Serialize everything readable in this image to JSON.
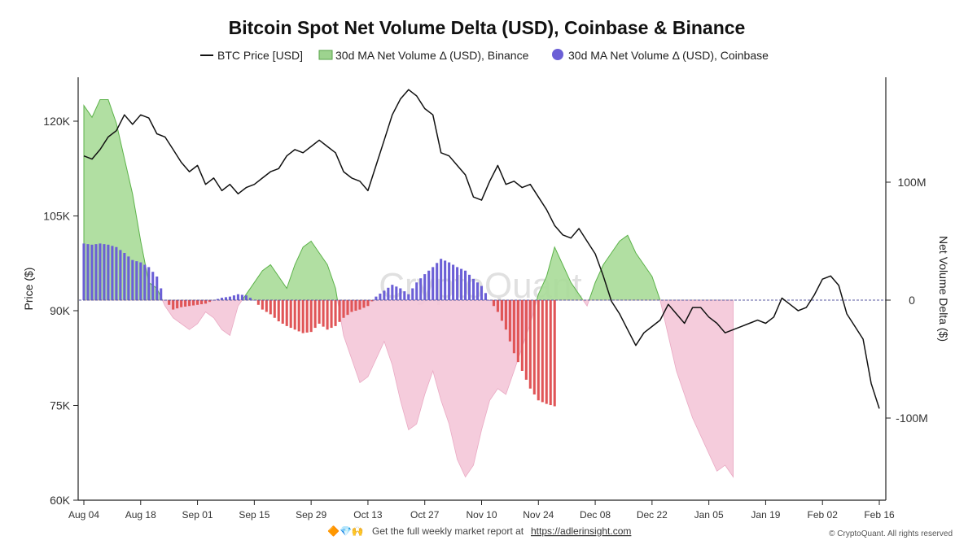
{
  "chart_data": {
    "type": "line",
    "title": "Bitcoin Spot Net Volume Delta (USD), Coinbase & Binance",
    "legend": [
      {
        "label": "BTC Price [USD]",
        "symbol": "line",
        "color": "#111111"
      },
      {
        "label": "30d MA Net Volume Δ (USD), Binance",
        "symbol": "area",
        "color": "#7cc46a"
      },
      {
        "label": "30d MA Net Volume Δ (USD), Coinbase",
        "symbol": "circle",
        "color": "#6b5fd6"
      }
    ],
    "y_left": {
      "label": "Price ($)",
      "ticks": [
        {
          "v": 60000,
          "t": "60K"
        },
        {
          "v": 75000,
          "t": "75K"
        },
        {
          "v": 90000,
          "t": "90K"
        },
        {
          "v": 105000,
          "t": "105K"
        },
        {
          "v": 120000,
          "t": "120K"
        }
      ],
      "range": [
        60000,
        130000
      ]
    },
    "y_right": {
      "label": "Net Volume Delta ($)",
      "ticks": [
        {
          "v": 100000000,
          "t": "100M"
        },
        {
          "v": 0,
          "t": "0"
        },
        {
          "v": -100000000,
          "t": "-100M"
        }
      ],
      "range": [
        -170000000,
        190000000
      ]
    },
    "x_ticks": [
      "Aug 04",
      "Aug 18",
      "Sep 01",
      "Sep 15",
      "Sep 29",
      "Oct 13",
      "Oct 27",
      "Nov 10",
      "Nov 24",
      "Dec 08",
      "Dec 22",
      "Jan 05",
      "Jan 19",
      "Feb 02",
      "Feb 16"
    ],
    "x_range_days": [
      0,
      196
    ],
    "series": [
      {
        "name": "BTC Price [USD]",
        "color": "#111111",
        "points": [
          [
            0,
            114500
          ],
          [
            2,
            114000
          ],
          [
            4,
            115500
          ],
          [
            6,
            117500
          ],
          [
            8,
            118500
          ],
          [
            10,
            121000
          ],
          [
            12,
            119500
          ],
          [
            14,
            121000
          ],
          [
            16,
            120500
          ],
          [
            18,
            118000
          ],
          [
            20,
            117500
          ],
          [
            22,
            115500
          ],
          [
            24,
            113500
          ],
          [
            26,
            112000
          ],
          [
            28,
            113000
          ],
          [
            30,
            110000
          ],
          [
            32,
            111000
          ],
          [
            34,
            109000
          ],
          [
            36,
            110000
          ],
          [
            38,
            108500
          ],
          [
            40,
            109500
          ],
          [
            42,
            110000
          ],
          [
            44,
            111000
          ],
          [
            46,
            112000
          ],
          [
            48,
            112500
          ],
          [
            50,
            114500
          ],
          [
            52,
            115500
          ],
          [
            54,
            115000
          ],
          [
            56,
            116000
          ],
          [
            58,
            117000
          ],
          [
            60,
            116000
          ],
          [
            62,
            115000
          ],
          [
            64,
            112000
          ],
          [
            66,
            111000
          ],
          [
            68,
            110500
          ],
          [
            70,
            109000
          ],
          [
            72,
            113000
          ],
          [
            74,
            117000
          ],
          [
            76,
            121000
          ],
          [
            78,
            123500
          ],
          [
            80,
            125000
          ],
          [
            82,
            124000
          ],
          [
            84,
            122000
          ],
          [
            86,
            121000
          ],
          [
            88,
            115000
          ],
          [
            90,
            114500
          ],
          [
            92,
            113000
          ],
          [
            94,
            111500
          ],
          [
            96,
            108000
          ],
          [
            98,
            107500
          ],
          [
            100,
            110500
          ],
          [
            102,
            113000
          ],
          [
            104,
            110000
          ],
          [
            106,
            110500
          ],
          [
            108,
            109500
          ],
          [
            110,
            110000
          ],
          [
            112,
            108000
          ],
          [
            114,
            106000
          ],
          [
            116,
            103500
          ],
          [
            118,
            102000
          ],
          [
            120,
            101500
          ],
          [
            122,
            103000
          ],
          [
            124,
            101000
          ],
          [
            126,
            99000
          ],
          [
            128,
            95500
          ],
          [
            130,
            91500
          ],
          [
            132,
            89500
          ],
          [
            134,
            87000
          ],
          [
            136,
            84500
          ],
          [
            138,
            86500
          ],
          [
            140,
            87500
          ],
          [
            142,
            88500
          ],
          [
            144,
            91000
          ],
          [
            146,
            89500
          ],
          [
            148,
            88000
          ],
          [
            150,
            90500
          ],
          [
            152,
            90500
          ],
          [
            154,
            89000
          ],
          [
            156,
            88000
          ],
          [
            158,
            86500
          ],
          [
            160,
            87000
          ],
          [
            162,
            87500
          ],
          [
            164,
            88000
          ],
          [
            166,
            88500
          ],
          [
            168,
            88000
          ],
          [
            170,
            89000
          ],
          [
            172,
            92000
          ],
          [
            174,
            91000
          ],
          [
            176,
            90000
          ],
          [
            178,
            90500
          ],
          [
            180,
            92500
          ],
          [
            182,
            95000
          ],
          [
            184,
            95500
          ],
          [
            186,
            94000
          ],
          [
            188,
            89500
          ],
          [
            190,
            87500
          ],
          [
            192,
            85500
          ],
          [
            194,
            78500
          ],
          [
            196,
            74500
          ]
        ]
      },
      {
        "name": "30d MA Net Volume Δ (USD), Binance",
        "color": "#7cc46a",
        "negative_color": "#f4c6d8",
        "points": [
          [
            0,
            165000000
          ],
          [
            2,
            155000000
          ],
          [
            4,
            170000000
          ],
          [
            6,
            170000000
          ],
          [
            8,
            150000000
          ],
          [
            10,
            120000000
          ],
          [
            12,
            90000000
          ],
          [
            14,
            50000000
          ],
          [
            16,
            15000000
          ],
          [
            18,
            10000000
          ],
          [
            20,
            -5000000
          ],
          [
            22,
            -15000000
          ],
          [
            24,
            -20000000
          ],
          [
            26,
            -25000000
          ],
          [
            28,
            -20000000
          ],
          [
            30,
            -10000000
          ],
          [
            32,
            -15000000
          ],
          [
            34,
            -25000000
          ],
          [
            36,
            -30000000
          ],
          [
            38,
            -5000000
          ],
          [
            40,
            5000000
          ],
          [
            42,
            15000000
          ],
          [
            44,
            25000000
          ],
          [
            46,
            30000000
          ],
          [
            48,
            20000000
          ],
          [
            50,
            10000000
          ],
          [
            52,
            30000000
          ],
          [
            54,
            45000000
          ],
          [
            56,
            50000000
          ],
          [
            58,
            40000000
          ],
          [
            60,
            30000000
          ],
          [
            62,
            10000000
          ],
          [
            64,
            -30000000
          ],
          [
            66,
            -50000000
          ],
          [
            68,
            -70000000
          ],
          [
            70,
            -65000000
          ],
          [
            72,
            -50000000
          ],
          [
            74,
            -35000000
          ],
          [
            76,
            -55000000
          ],
          [
            78,
            -85000000
          ],
          [
            80,
            -110000000
          ],
          [
            82,
            -105000000
          ],
          [
            84,
            -80000000
          ],
          [
            86,
            -60000000
          ],
          [
            88,
            -85000000
          ],
          [
            90,
            -105000000
          ],
          [
            92,
            -135000000
          ],
          [
            94,
            -150000000
          ],
          [
            96,
            -140000000
          ],
          [
            98,
            -110000000
          ],
          [
            100,
            -85000000
          ],
          [
            102,
            -75000000
          ],
          [
            104,
            -80000000
          ],
          [
            106,
            -60000000
          ],
          [
            108,
            -40000000
          ],
          [
            110,
            -20000000
          ],
          [
            112,
            5000000
          ],
          [
            114,
            20000000
          ],
          [
            116,
            45000000
          ],
          [
            118,
            30000000
          ],
          [
            120,
            15000000
          ],
          [
            122,
            5000000
          ],
          [
            124,
            -5000000
          ],
          [
            126,
            15000000
          ],
          [
            128,
            30000000
          ],
          [
            130,
            40000000
          ],
          [
            132,
            50000000
          ],
          [
            134,
            55000000
          ],
          [
            136,
            40000000
          ],
          [
            138,
            30000000
          ],
          [
            140,
            20000000
          ],
          [
            142,
            0
          ],
          [
            144,
            -30000000
          ],
          [
            146,
            -60000000
          ],
          [
            148,
            -80000000
          ],
          [
            150,
            -100000000
          ],
          [
            152,
            -115000000
          ],
          [
            154,
            -130000000
          ],
          [
            156,
            -145000000
          ],
          [
            158,
            -140000000
          ],
          [
            160,
            -150000000
          ]
        ]
      },
      {
        "name": "30d MA Net Volume Δ (USD), Coinbase",
        "color": "#6b5fd6",
        "negative_color": "#e05557",
        "points": [
          [
            0,
            48000000
          ],
          [
            2,
            47000000
          ],
          [
            4,
            48000000
          ],
          [
            6,
            47000000
          ],
          [
            8,
            45000000
          ],
          [
            10,
            40000000
          ],
          [
            12,
            34000000
          ],
          [
            14,
            32000000
          ],
          [
            16,
            28000000
          ],
          [
            18,
            20000000
          ],
          [
            20,
            0
          ],
          [
            22,
            -8000000
          ],
          [
            24,
            -6000000
          ],
          [
            26,
            -5000000
          ],
          [
            28,
            -4000000
          ],
          [
            30,
            -3000000
          ],
          [
            32,
            0
          ],
          [
            34,
            2000000
          ],
          [
            36,
            3000000
          ],
          [
            38,
            5000000
          ],
          [
            40,
            4000000
          ],
          [
            42,
            0
          ],
          [
            44,
            -8000000
          ],
          [
            46,
            -12000000
          ],
          [
            48,
            -18000000
          ],
          [
            50,
            -22000000
          ],
          [
            52,
            -25000000
          ],
          [
            54,
            -28000000
          ],
          [
            56,
            -27000000
          ],
          [
            58,
            -20000000
          ],
          [
            60,
            -25000000
          ],
          [
            62,
            -22000000
          ],
          [
            64,
            -15000000
          ],
          [
            66,
            -10000000
          ],
          [
            68,
            -8000000
          ],
          [
            70,
            -5000000
          ],
          [
            72,
            3000000
          ],
          [
            74,
            8000000
          ],
          [
            76,
            13000000
          ],
          [
            78,
            10000000
          ],
          [
            80,
            5000000
          ],
          [
            82,
            15000000
          ],
          [
            84,
            22000000
          ],
          [
            86,
            28000000
          ],
          [
            88,
            35000000
          ],
          [
            90,
            32000000
          ],
          [
            92,
            28000000
          ],
          [
            94,
            25000000
          ],
          [
            96,
            18000000
          ],
          [
            98,
            12000000
          ],
          [
            100,
            0
          ],
          [
            102,
            -10000000
          ],
          [
            104,
            -25000000
          ],
          [
            106,
            -45000000
          ],
          [
            108,
            -60000000
          ],
          [
            110,
            -75000000
          ],
          [
            112,
            -85000000
          ],
          [
            114,
            -88000000
          ],
          [
            116,
            -90000000
          ]
        ]
      }
    ]
  },
  "watermark": "CryptoQuant",
  "footer": {
    "icons": "🔶💎🙌",
    "text": "Get the full weekly market report at",
    "link": "https://adlerinsight.com"
  },
  "copyright": "© CryptoQuant. All rights reserved"
}
